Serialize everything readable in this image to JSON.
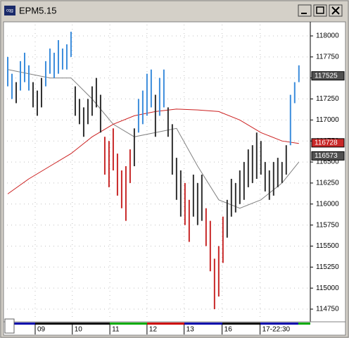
{
  "chart_data": {
    "type": "range_bar",
    "title": "EPM5.15",
    "xlim": [
      -0.5,
      71.7
    ],
    "ylim": [
      114616,
      118134
    ],
    "yticks": [
      118000,
      117750,
      117500,
      117250,
      117000,
      116750,
      116500,
      116250,
      116000,
      115750,
      115500,
      115250,
      115000,
      114750
    ],
    "xticks": [
      {
        "value": 6.5,
        "label": "09"
      },
      {
        "value": 15.3,
        "label": "10"
      },
      {
        "value": 24.2,
        "label": "11"
      },
      {
        "value": 33,
        "label": "12"
      },
      {
        "value": 41.8,
        "label": "13"
      },
      {
        "value": 50.8,
        "label": "16"
      },
      {
        "value": 59.8,
        "label": "17-22:30"
      }
    ],
    "grid": true,
    "highs": [
      117750,
      117550,
      117450,
      117700,
      117800,
      117650,
      117450,
      117350,
      117500,
      117700,
      117850,
      117800,
      117950,
      117850,
      117900,
      118050,
      117400,
      117250,
      117150,
      117250,
      117400,
      117500,
      117300,
      116800,
      116750,
      116900,
      116600,
      116400,
      116450,
      116650,
      116900,
      117250,
      117350,
      117550,
      117600,
      117300,
      117500,
      117600,
      117150,
      116950,
      116550,
      116400,
      116250,
      116050,
      116350,
      116250,
      116350,
      115950,
      115800,
      115350,
      115500,
      115850,
      116050,
      116300,
      116250,
      116400,
      116500,
      116650,
      116700,
      116850,
      116750,
      116500,
      116400,
      116500,
      116550,
      116500,
      116700,
      117300,
      117450,
      117650
    ],
    "lows": [
      117400,
      117250,
      117200,
      117350,
      117450,
      117350,
      117150,
      117050,
      117150,
      117400,
      117550,
      117500,
      117550,
      117600,
      117600,
      117750,
      117050,
      116950,
      116800,
      116950,
      117050,
      117150,
      116850,
      116350,
      116200,
      116400,
      116100,
      115950,
      115800,
      116250,
      116450,
      116850,
      116950,
      117050,
      117150,
      116800,
      117050,
      117150,
      116800,
      116350,
      116050,
      115850,
      115750,
      115550,
      115850,
      115750,
      115800,
      115500,
      115200,
      114750,
      114900,
      115300,
      115600,
      115850,
      115900,
      116000,
      116050,
      116200,
      116250,
      116300,
      116350,
      116150,
      116050,
      116100,
      116200,
      116250,
      116350,
      116700,
      117200,
      117450
    ],
    "bar_colors": [
      "#3c8ddc",
      "#3c8ddc",
      "#303030",
      "#3c8ddc",
      "#3c8ddc",
      "#3c8ddc",
      "#303030",
      "#303030",
      "#303030",
      "#3c8ddc",
      "#3c8ddc",
      "#3c8ddc",
      "#3c8ddc",
      "#3c8ddc",
      "#3c8ddc",
      "#3c8ddc",
      "#303030",
      "#303030",
      "#303030",
      "#303030",
      "#303030",
      "#303030",
      "#303030",
      "#c82828",
      "#c82828",
      "#c82828",
      "#c82828",
      "#c82828",
      "#c82828",
      "#c82828",
      "#303030",
      "#3c8ddc",
      "#3c8ddc",
      "#3c8ddc",
      "#3c8ddc",
      "#303030",
      "#3c8ddc",
      "#3c8ddc",
      "#303030",
      "#303030",
      "#303030",
      "#303030",
      "#c82828",
      "#c82828",
      "#303030",
      "#303030",
      "#303030",
      "#c82828",
      "#c82828",
      "#c82828",
      "#c82828",
      "#c82828",
      "#303030",
      "#303030",
      "#303030",
      "#303030",
      "#303030",
      "#303030",
      "#303030",
      "#303030",
      "#303030",
      "#303030",
      "#303030",
      "#303030",
      "#303030",
      "#303030",
      "#303030",
      "#3c8ddc",
      "#3c8ddc",
      "#3c8ddc"
    ],
    "series": [
      {
        "color": "#808080",
        "x": [
          0,
          5,
          10,
          15,
          20,
          25,
          30,
          35,
          40,
          45,
          50,
          55,
          60,
          65,
          69
        ],
        "values": [
          117600,
          117550,
          117500,
          117500,
          117250,
          116950,
          116800,
          116850,
          116900,
          116450,
          116050,
          115950,
          116050,
          116250,
          116500
        ]
      },
      {
        "color": "#cc2020",
        "x": [
          0,
          5,
          10,
          15,
          20,
          25,
          30,
          35,
          40,
          45,
          50,
          55,
          60,
          65,
          69
        ],
        "values": [
          116120,
          116300,
          116450,
          116600,
          116800,
          116950,
          117050,
          117100,
          117130,
          117120,
          117100,
          117000,
          116850,
          116750,
          116720
        ]
      }
    ],
    "price_markers": [
      {
        "value": 117525,
        "color": "#505050"
      },
      {
        "value": 116728,
        "color": "#c82828"
      },
      {
        "value": 116573,
        "color": "#505050"
      }
    ]
  }
}
